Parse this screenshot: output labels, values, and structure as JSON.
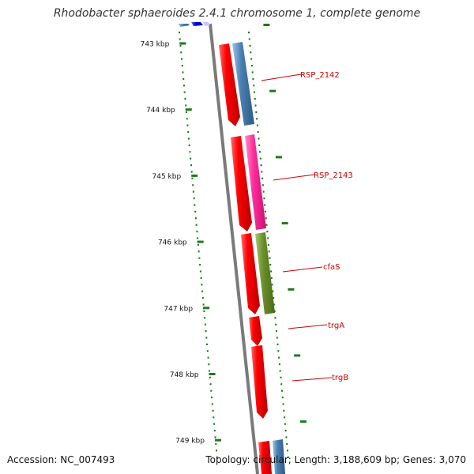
{
  "title": "Rhodobacter sphaeroides 2.4.1 chromosome 1, complete genome",
  "footer": {
    "accession": "Accession: NC_007493",
    "summary": "Topology: circular; Length: 3,188,609 bp; Genes: 3,070"
  },
  "ticks": [
    "743 kbp",
    "744 kbp",
    "745 kbp",
    "746 kbp",
    "747 kbp",
    "748 kbp",
    "749 kbp"
  ],
  "genes": [
    {
      "label": "RSP_2142",
      "color": "#4a7fb0"
    },
    {
      "label": "RSP_2143",
      "color": "#ff2d9a"
    },
    {
      "label": "cfaS",
      "color": "#6a8f2a"
    },
    {
      "label": "trgA",
      "color": "#ff0000"
    },
    {
      "label": "trgB",
      "color": "#ff0000"
    }
  ],
  "colors": {
    "forward_gene": "#ff0000",
    "label_text": "#cc0000",
    "tick": "#1a7a1a",
    "backbone": "#7a7a7a"
  }
}
